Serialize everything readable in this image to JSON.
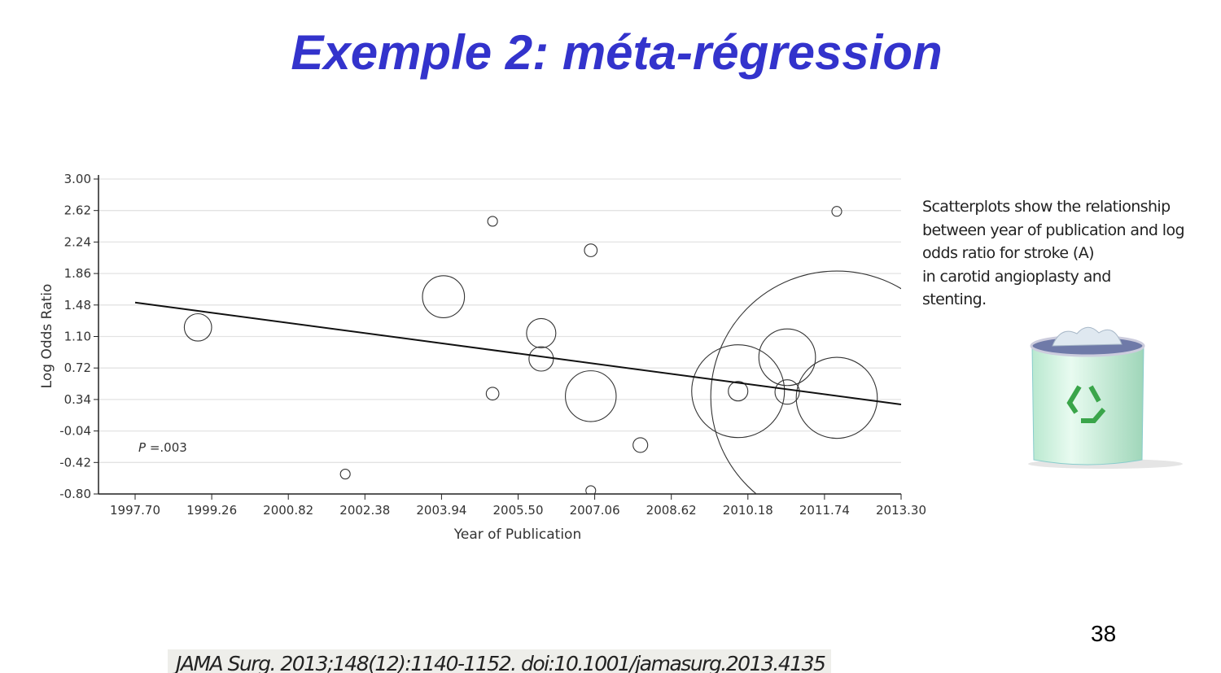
{
  "title": "Exemple 2: méta-régression",
  "chart_data": {
    "type": "scatter",
    "subtype": "bubble",
    "xlabel": "Year of Publication",
    "ylabel": "Log Odds Ratio",
    "xlim": [
      1997.7,
      2013.3
    ],
    "ylim": [
      -0.8,
      3.0
    ],
    "xticks": [
      "1997.70",
      "1999.26",
      "2000.82",
      "2002.38",
      "2003.94",
      "2005.50",
      "2007.06",
      "2008.62",
      "2010.18",
      "2011.74",
      "2013.30"
    ],
    "yticks": [
      "3.00",
      "2.62",
      "2.24",
      "1.86",
      "1.48",
      "1.10",
      "0.72",
      "0.34",
      "-0.04",
      "-0.42",
      "-0.80"
    ],
    "grid": "horizontal",
    "annotation": {
      "p_label": "P",
      "p_value": " =.003"
    },
    "points": [
      {
        "x": 1998.98,
        "y": 1.21,
        "weight": 2.8
      },
      {
        "x": 2001.98,
        "y": -0.56,
        "weight": 1.0
      },
      {
        "x": 2003.98,
        "y": 1.58,
        "weight": 4.3
      },
      {
        "x": 2004.98,
        "y": 2.49,
        "weight": 1.0
      },
      {
        "x": 2004.98,
        "y": 0.41,
        "weight": 1.3
      },
      {
        "x": 2005.97,
        "y": 1.14,
        "weight": 3.0
      },
      {
        "x": 2005.97,
        "y": 0.83,
        "weight": 2.5
      },
      {
        "x": 2006.98,
        "y": 2.14,
        "weight": 1.3
      },
      {
        "x": 2006.98,
        "y": 0.38,
        "weight": 5.2
      },
      {
        "x": 2006.98,
        "y": -0.76,
        "weight": 1.0
      },
      {
        "x": 2007.99,
        "y": -0.21,
        "weight": 1.5
      },
      {
        "x": 2009.98,
        "y": 0.44,
        "weight": 9.5
      },
      {
        "x": 2009.98,
        "y": 0.44,
        "weight": 2.0
      },
      {
        "x": 2010.98,
        "y": 0.85,
        "weight": 5.8
      },
      {
        "x": 2010.98,
        "y": 0.43,
        "weight": 2.5
      },
      {
        "x": 2011.99,
        "y": 0.36,
        "weight": 8.3
      },
      {
        "x": 2011.99,
        "y": 2.61,
        "weight": 1.0
      },
      {
        "x": 2011.99,
        "y": 0.37,
        "weight": 25.8
      }
    ],
    "regression_line": {
      "x": [
        1997.7,
        2013.3
      ],
      "y": [
        1.51,
        0.28
      ]
    }
  },
  "caption": [
    "Scatterplots show the relationship",
    "between year of publication and log",
    "odds ratio for stroke (A)",
    "in carotid angioplasty and",
    "stenting."
  ],
  "icon": "recycle-bin-icon",
  "slide_number": "38",
  "citation": "JAMA Surg. 2013;148(12):1140-1152. doi:10.1001/jamasurg.2013.4135",
  "colors": {
    "title": "#3333cc",
    "grid": "#e3e3e3",
    "axis": "#222222"
  }
}
